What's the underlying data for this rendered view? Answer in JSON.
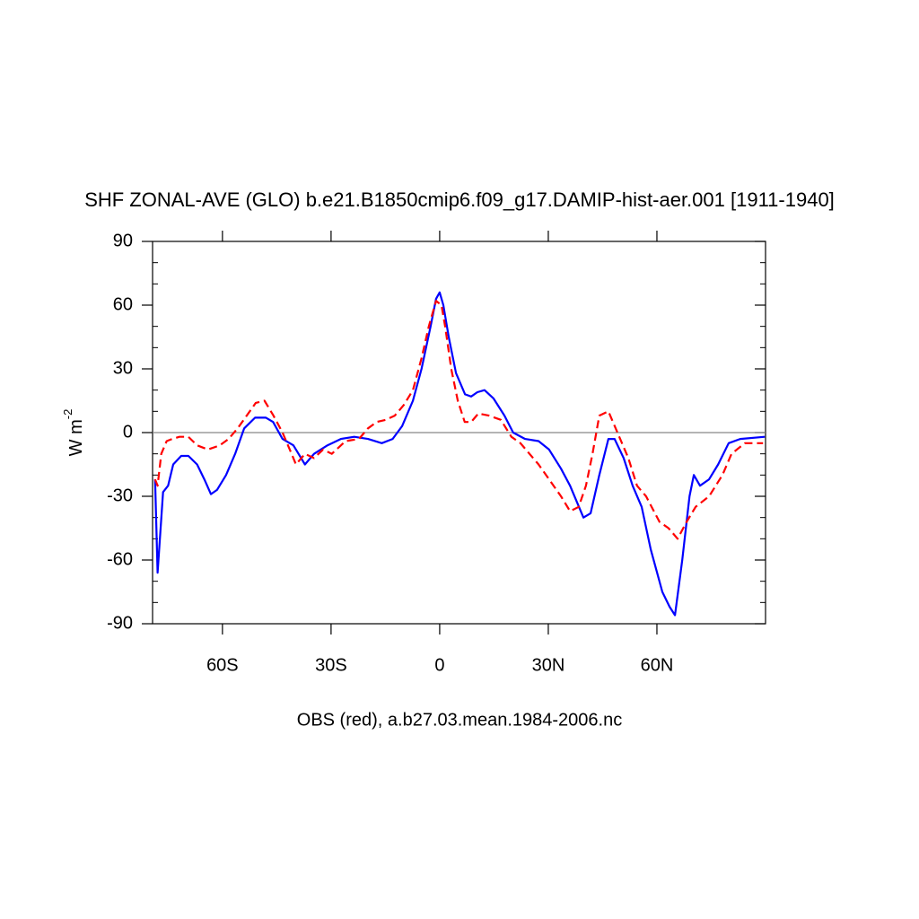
{
  "chart_data": {
    "type": "line",
    "title": "SHF ZONAL-AVE (GLO) b.e21.B1850cmip6.f09_g17.DAMIP-hist-aer.001 [1911-1940]",
    "xlabel": "OBS (red), a.b27.03.mean.1984-2006.nc",
    "ylabel": "W m",
    "ylabel_exponent": "-2",
    "xlim": [
      -79.3,
      90
    ],
    "ylim": [
      -90,
      90
    ],
    "xticks": [
      {
        "value": -60,
        "label": "60S"
      },
      {
        "value": -30,
        "label": "30S"
      },
      0,
      {
        "value": 30,
        "label": "30N"
      },
      {
        "value": 60,
        "label": "60N"
      }
    ],
    "yticks": [
      -90,
      -60,
      -30,
      0,
      30,
      60,
      90
    ],
    "yminorticks": [
      -80,
      -70,
      -50,
      -40,
      -20,
      -10,
      10,
      20,
      40,
      50,
      70,
      80
    ],
    "reference_line": 0,
    "series": [
      {
        "color": "#0000ff",
        "dash": false,
        "x": [
          -78.6,
          -77.9,
          -76.4,
          -75,
          -73.6,
          -71.4,
          -69.4,
          -67,
          -65,
          -63.2,
          -61.5,
          -59,
          -56.5,
          -54,
          -51,
          -48,
          -46,
          -43.4,
          -40.4,
          -37.2,
          -34.7,
          -31,
          -27.3,
          -23.6,
          -19.8,
          -16,
          -13,
          -10.4,
          -7.4,
          -5,
          -2.5,
          -1,
          0,
          1,
          2.5,
          4.5,
          7,
          8.7,
          10.4,
          12.4,
          14.9,
          17.9,
          20.3,
          23.6,
          27.3,
          30.2,
          33.5,
          36,
          39.7,
          41.7,
          44.1,
          46.6,
          48.3,
          50.8,
          53.3,
          55.8,
          58.3,
          61.5,
          63.5,
          65,
          67,
          69,
          70.2,
          71.9,
          74.4,
          76.9,
          79.8,
          83,
          89.8
        ],
        "values": [
          -22,
          -66,
          -28,
          -25,
          -15,
          -11,
          -11,
          -15,
          -22,
          -29,
          -27,
          -20,
          -10,
          2,
          7,
          7,
          5,
          -3,
          -6,
          -15,
          -10,
          -6,
          -3,
          -2,
          -3,
          -5,
          -3,
          3,
          15,
          30,
          50,
          63,
          66,
          60,
          45,
          28,
          18,
          17,
          19,
          20,
          16,
          8,
          0,
          -3,
          -4,
          -8,
          -17,
          -25,
          -40,
          -38,
          -20,
          -3,
          -3,
          -12,
          -25,
          -35,
          -55,
          -75,
          -82,
          -86,
          -60,
          -30,
          -20,
          -25,
          -22,
          -15,
          -5,
          -3,
          -2
        ]
      },
      {
        "color": "#ff0000",
        "dash": true,
        "x": [
          -78.6,
          -77.9,
          -76.9,
          -75.4,
          -73.9,
          -71.9,
          -69.4,
          -67,
          -64,
          -60.7,
          -58.3,
          -55.8,
          -53.3,
          -50.8,
          -48.4,
          -45.9,
          -43.4,
          -40.9,
          -39.7,
          -37.2,
          -34.7,
          -32.2,
          -29.8,
          -26,
          -22.3,
          -19.8,
          -17.4,
          -14.9,
          -12.4,
          -9.9,
          -7.4,
          -5,
          -3,
          -1,
          0.5,
          1.5,
          3.2,
          5,
          6.9,
          8.7,
          10.7,
          13.6,
          16.9,
          19.8,
          22.3,
          24.8,
          27.3,
          30.2,
          33.5,
          36,
          38.4,
          40.4,
          42.2,
          44.1,
          46.6,
          49.1,
          52.1,
          54.5,
          57,
          60.7,
          63.2,
          65.7,
          68.2,
          70.7,
          74.4,
          78.1,
          80.6,
          84.3,
          89.3
        ],
        "values": [
          -22,
          -25,
          -10,
          -4,
          -3,
          -2,
          -2,
          -6,
          -8,
          -6,
          -3,
          2,
          8,
          14,
          15,
          8,
          0,
          -10,
          -15,
          -10,
          -12,
          -8,
          -10,
          -4,
          -3,
          2,
          5,
          6,
          8,
          13,
          20,
          35,
          50,
          62,
          60,
          50,
          30,
          15,
          5,
          5,
          9,
          8,
          6,
          -2,
          -5,
          -10,
          -15,
          -22,
          -30,
          -37,
          -35,
          -25,
          -10,
          8,
          10,
          0,
          -12,
          -25,
          -30,
          -42,
          -45,
          -50,
          -42,
          -35,
          -30,
          -20,
          -10,
          -5,
          -5
        ]
      }
    ]
  }
}
